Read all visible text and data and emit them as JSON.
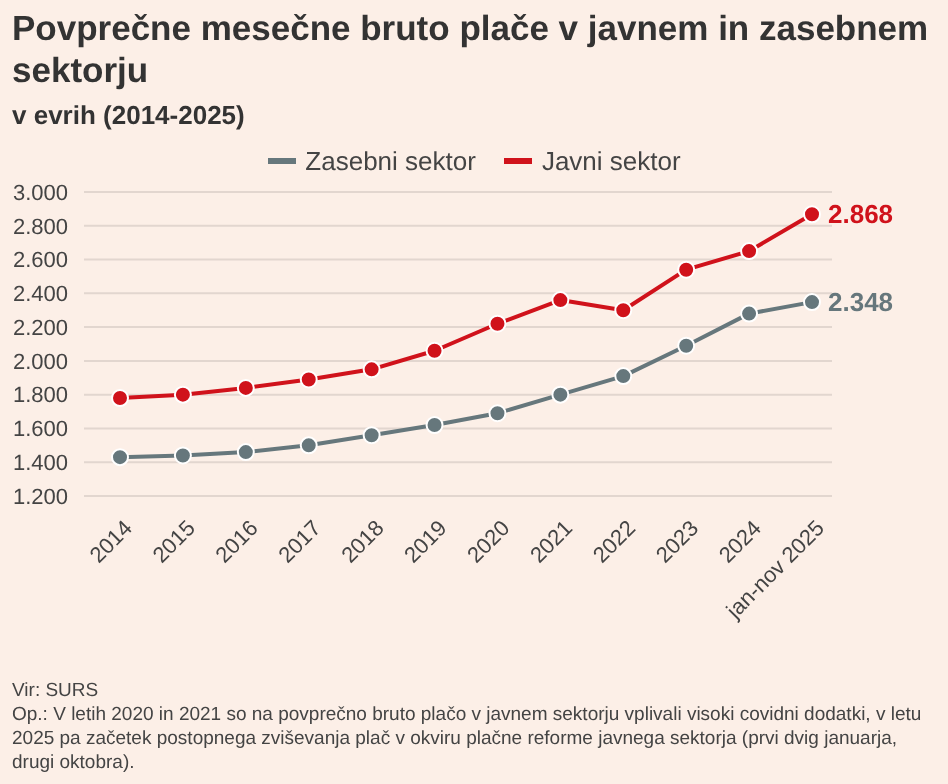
{
  "chart_data": {
    "type": "line",
    "title": "Povprečne mesečne bruto plače v javnem in zasebnem sektorju",
    "subtitle": "v evrih (2014-2025)",
    "categories": [
      "2014",
      "2015",
      "2016",
      "2017",
      "2018",
      "2019",
      "2020",
      "2021",
      "2022",
      "2023",
      "2024",
      "jan-nov 2025"
    ],
    "series": [
      {
        "name": "Zasebni sektor",
        "color": "#66777c",
        "values": [
          1430,
          1440,
          1460,
          1500,
          1560,
          1620,
          1690,
          1800,
          1910,
          2090,
          2280,
          2348
        ],
        "value_labels": [
          null,
          null,
          null,
          null,
          null,
          null,
          null,
          null,
          null,
          null,
          null,
          "2.348"
        ]
      },
      {
        "name": "Javni sektor",
        "color": "#d0121b",
        "values": [
          1780,
          1800,
          1840,
          1890,
          1950,
          2060,
          2220,
          2360,
          2300,
          2540,
          2650,
          2868
        ],
        "value_labels": [
          null,
          null,
          null,
          null,
          null,
          null,
          null,
          null,
          null,
          null,
          null,
          "2.868"
        ]
      }
    ],
    "ylim": [
      1200,
      3000
    ],
    "yticks": [
      {
        "value": 1200,
        "label": "1.200"
      },
      {
        "value": 1400,
        "label": "1.400"
      },
      {
        "value": 1600,
        "label": "1.600"
      },
      {
        "value": 1800,
        "label": "1.800"
      },
      {
        "value": 2000,
        "label": "2.000"
      },
      {
        "value": 2200,
        "label": "2.200"
      },
      {
        "value": 2400,
        "label": "2.400"
      },
      {
        "value": 2600,
        "label": "2.600"
      },
      {
        "value": 2800,
        "label": "2.800"
      },
      {
        "value": 3000,
        "label": "3.000"
      }
    ],
    "grid": "y",
    "legend": "top",
    "marker": "circle",
    "line_style": "solid",
    "annotations": [
      "Vir: SURS",
      "Op.: V letih 2020 in 2021 so na povprečno bruto plačo v javnem sektorju vplivali visoki covidni dodatki, v letu 2025 pa začetek postopnega zviševanja plač v okviru plačne reforme javnega sektorja (prvi dvig januarja, drugi oktobra)."
    ]
  }
}
